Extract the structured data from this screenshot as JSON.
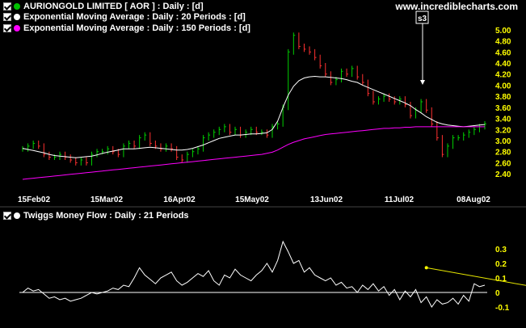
{
  "watermark": "www.incrediblecharts.com",
  "legend": {
    "price": {
      "label": "AURIONGOLD LIMITED  [ AOR ] : Daily : [d]",
      "color": "#00c000"
    },
    "ema20": {
      "label": "Exponential Moving Average : Daily : 20 Periods : [d]",
      "color": "#ffffff"
    },
    "ema150": {
      "label": "Exponential Moving Average : Daily : 150 Periods : [d]",
      "color": "#ff00ff"
    },
    "tmf": {
      "label": "Twiggs Money Flow : Daily : 21 Periods",
      "color": "#ffffff"
    }
  },
  "annotation": {
    "label": "s3"
  },
  "chart_data": [
    {
      "type": "bar",
      "ylim": [
        2.3,
        5.1
      ],
      "yticks": [
        "2.40",
        "2.60",
        "2.80",
        "3.00",
        "3.20",
        "3.40",
        "3.60",
        "3.80",
        "4.00",
        "4.20",
        "4.40",
        "4.60",
        "4.80",
        "5.00"
      ],
      "xticks": [
        "15Feb02",
        "15Mar02",
        "16Apr02",
        "15May02",
        "13Jun02",
        "11Jul02",
        "08Aug02"
      ],
      "close": [
        2.85,
        2.9,
        2.95,
        2.9,
        2.75,
        2.7,
        2.7,
        2.75,
        2.7,
        2.65,
        2.6,
        2.65,
        2.6,
        2.75,
        2.8,
        2.8,
        2.85,
        2.8,
        2.75,
        2.9,
        2.95,
        2.9,
        3.05,
        3.1,
        2.95,
        2.9,
        2.85,
        2.9,
        2.85,
        2.7,
        2.65,
        2.75,
        2.8,
        2.85,
        3.05,
        3.1,
        3.15,
        3.2,
        3.25,
        3.15,
        3.2,
        3.1,
        3.15,
        3.2,
        3.15,
        3.15,
        3.1,
        3.25,
        3.3,
        3.6,
        4.6,
        4.9,
        4.7,
        4.65,
        4.6,
        4.5,
        4.35,
        4.2,
        4.05,
        4.1,
        4.25,
        4.2,
        4.3,
        4.15,
        4.05,
        3.85,
        3.7,
        3.75,
        3.8,
        3.75,
        3.7,
        3.75,
        3.65,
        3.45,
        3.55,
        3.7,
        3.55,
        3.3,
        3.05,
        2.75,
        2.9,
        3.05,
        3.05,
        3.1,
        3.15,
        3.2,
        3.25,
        3.3
      ],
      "ema20": [
        2.86,
        2.84,
        2.82,
        2.8,
        2.78,
        2.75,
        2.73,
        2.72,
        2.71,
        2.7,
        2.69,
        2.7,
        2.71,
        2.72,
        2.74,
        2.77,
        2.79,
        2.81,
        2.83,
        2.85,
        2.85,
        2.85,
        2.86,
        2.87,
        2.88,
        2.87,
        2.86,
        2.85,
        2.84,
        2.83,
        2.83,
        2.84,
        2.86,
        2.89,
        2.92,
        2.96,
        3.0,
        3.04,
        3.06,
        3.08,
        3.1,
        3.1,
        3.11,
        3.12,
        3.12,
        3.13,
        3.14,
        3.2,
        3.35,
        3.6,
        3.82,
        3.98,
        4.08,
        4.13,
        4.15,
        4.16,
        4.15,
        4.15,
        4.14,
        4.13,
        4.12,
        4.1,
        4.07,
        4.05,
        4.0,
        3.96,
        3.92,
        3.88,
        3.84,
        3.8,
        3.76,
        3.72,
        3.68,
        3.63,
        3.56,
        3.5,
        3.43,
        3.38,
        3.33,
        3.3,
        3.28,
        3.27,
        3.26,
        3.25,
        3.26,
        3.27,
        3.28,
        3.29
      ],
      "ema150": [
        2.3,
        2.31,
        2.32,
        2.33,
        2.34,
        2.35,
        2.36,
        2.37,
        2.38,
        2.39,
        2.4,
        2.41,
        2.42,
        2.43,
        2.44,
        2.45,
        2.46,
        2.47,
        2.48,
        2.49,
        2.5,
        2.51,
        2.52,
        2.53,
        2.54,
        2.55,
        2.56,
        2.57,
        2.58,
        2.59,
        2.6,
        2.61,
        2.62,
        2.63,
        2.64,
        2.65,
        2.66,
        2.67,
        2.68,
        2.69,
        2.7,
        2.71,
        2.72,
        2.73,
        2.74,
        2.75,
        2.77,
        2.79,
        2.83,
        2.88,
        2.93,
        2.97,
        3.0,
        3.03,
        3.05,
        3.07,
        3.09,
        3.11,
        3.12,
        3.13,
        3.14,
        3.15,
        3.16,
        3.17,
        3.18,
        3.19,
        3.2,
        3.21,
        3.22,
        3.22,
        3.23,
        3.23,
        3.24,
        3.24,
        3.25,
        3.25,
        3.25,
        3.25,
        3.25,
        3.25,
        3.25,
        3.25,
        3.25,
        3.25,
        3.25,
        3.25,
        3.25,
        3.25
      ]
    },
    {
      "type": "line",
      "ylim": [
        -0.17,
        0.37
      ],
      "yticks": [
        "0.3",
        "0.2",
        "0.1",
        "0",
        "-0.1"
      ],
      "values": [
        0,
        0.03,
        0.01,
        0.02,
        -0.01,
        -0.04,
        -0.03,
        -0.05,
        -0.04,
        -0.06,
        -0.05,
        -0.04,
        -0.02,
        0,
        -0.01,
        0,
        0.01,
        0.03,
        0.02,
        0.05,
        0.04,
        0.1,
        0.17,
        0.12,
        0.09,
        0.06,
        0.1,
        0.12,
        0.14,
        0.08,
        0.05,
        0.07,
        0.1,
        0.13,
        0.11,
        0.15,
        0.08,
        0.05,
        0.12,
        0.1,
        0.16,
        0.12,
        0.1,
        0.08,
        0.12,
        0.15,
        0.2,
        0.14,
        0.22,
        0.35,
        0.28,
        0.2,
        0.22,
        0.14,
        0.17,
        0.12,
        0.1,
        0.08,
        0.1,
        0.05,
        0.07,
        0.03,
        0.04,
        0,
        0.05,
        0.02,
        0.06,
        0.01,
        0.04,
        -0.02,
        0.02,
        -0.05,
        0.01,
        -0.03,
        0.02,
        -0.07,
        -0.03,
        -0.1,
        -0.05,
        -0.08,
        -0.07,
        -0.04,
        -0.08,
        -0.02,
        -0.06,
        0.06,
        0.04,
        0.05
      ],
      "trendline": {
        "from": [
          76,
          0.17
        ],
        "to": [
          113,
          -0.07
        ]
      }
    }
  ]
}
